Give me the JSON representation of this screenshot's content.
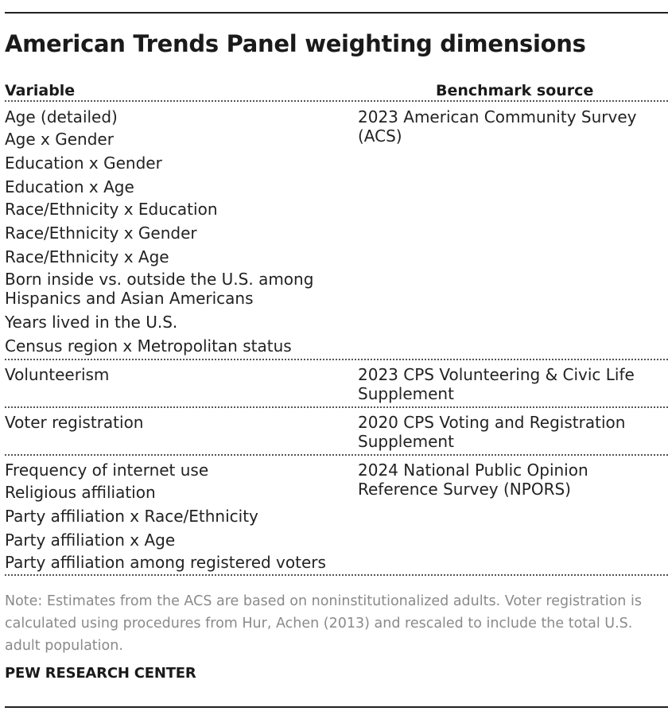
{
  "title": "American Trends Panel weighting dimensions",
  "headers": {
    "variable": "Variable",
    "source": "Benchmark source"
  },
  "groups": [
    {
      "variables": [
        "Age (detailed)",
        "Age x Gender",
        "Education x Gender",
        "Education x Age",
        "Race/Ethnicity x Education",
        "Race/Ethnicity x Gender",
        "Race/Ethnicity x Age",
        "Born inside vs. outside the U.S. among",
        "Hispanics and Asian Americans",
        "Years lived in the U.S.",
        "Census region x Metropolitan status"
      ],
      "source": [
        "2023 American Community Survey",
        "(ACS)"
      ]
    },
    {
      "variables": [
        "Volunteerism"
      ],
      "source": [
        "2023 CPS Volunteering & Civic Life",
        "Supplement"
      ]
    },
    {
      "variables": [
        "Voter registration"
      ],
      "source": [
        "2020 CPS Voting and Registration",
        "Supplement"
      ]
    },
    {
      "variables": [
        "Frequency of internet use",
        "Religious affiliation",
        "Party affiliation x Race/Ethnicity",
        "Party affiliation x Age",
        "Party affiliation among registered voters"
      ],
      "source": [
        "2024 National Public Opinion",
        "Reference Survey (NPORS)"
      ]
    }
  ],
  "note": [
    "Note: Estimates from the ACS are based on noninstitutionalized adults. Voter registration is",
    "calculated using procedures from Hur, Achen (2013) and rescaled to include the total U.S.",
    "adult population."
  ],
  "brand": "PEW RESEARCH CENTER"
}
